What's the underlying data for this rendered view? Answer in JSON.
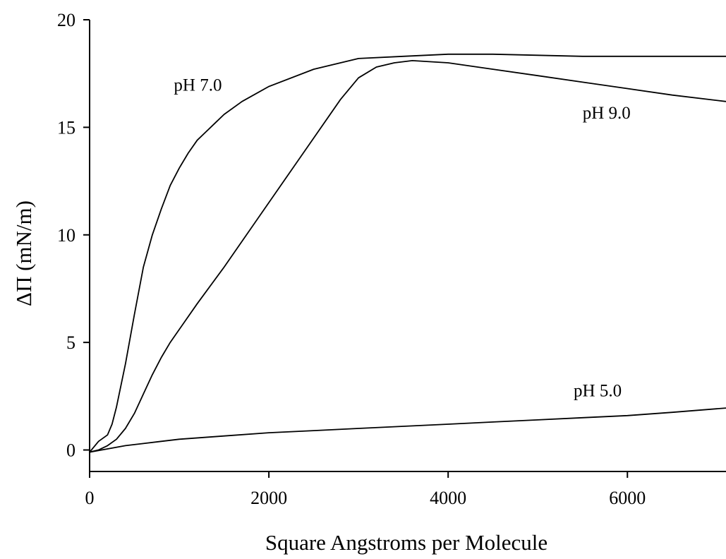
{
  "chart_data": {
    "type": "line",
    "title": "",
    "xlabel": "Square Angstroms per Molecule",
    "ylabel": "ΔΠ (mN/m)",
    "xlim": [
      0,
      7100
    ],
    "ylim": [
      -1,
      20
    ],
    "x_ticks": [
      0,
      2000,
      4000,
      6000
    ],
    "x_tick_labels": [
      "0",
      "2000",
      "4000",
      "6000"
    ],
    "y_ticks": [
      0,
      5,
      10,
      15,
      20
    ],
    "y_tick_labels": [
      "0",
      "5",
      "10",
      "15",
      "20"
    ],
    "grid": false,
    "legend": "none",
    "series": [
      {
        "name": "pH 7.0",
        "x": [
          0,
          100,
          200,
          250,
          300,
          400,
          500,
          600,
          700,
          800,
          900,
          1000,
          1100,
          1200,
          1300,
          1400,
          1500,
          1700,
          2000,
          2500,
          3000,
          3500,
          4000,
          4500,
          5000,
          5500,
          6000,
          6500,
          7100
        ],
        "y": [
          -0.1,
          0.4,
          0.7,
          1.2,
          2.0,
          4.0,
          6.3,
          8.5,
          10.0,
          11.2,
          12.3,
          13.1,
          13.8,
          14.4,
          14.8,
          15.2,
          15.6,
          16.2,
          16.9,
          17.7,
          18.2,
          18.3,
          18.4,
          18.4,
          18.35,
          18.3,
          18.3,
          18.3,
          18.3
        ],
        "label_x": 940,
        "label_y": 16.7
      },
      {
        "name": "pH 9.0",
        "x": [
          0,
          100,
          200,
          300,
          400,
          500,
          600,
          700,
          800,
          900,
          1000,
          1200,
          1500,
          2000,
          2500,
          2800,
          3000,
          3200,
          3400,
          3600,
          4000,
          4500,
          5000,
          5500,
          6000,
          6500,
          7100
        ],
        "y": [
          -0.1,
          0.0,
          0.2,
          0.5,
          1.0,
          1.7,
          2.6,
          3.5,
          4.3,
          5.0,
          5.6,
          6.8,
          8.5,
          11.5,
          14.5,
          16.3,
          17.3,
          17.8,
          18.0,
          18.1,
          18.0,
          17.7,
          17.4,
          17.1,
          16.8,
          16.5,
          16.2
        ],
        "label_x": 5500,
        "label_y": 15.4
      },
      {
        "name": "pH 5.0",
        "x": [
          0,
          200,
          400,
          600,
          800,
          1000,
          1500,
          2000,
          2500,
          3000,
          3500,
          4000,
          4500,
          5000,
          5500,
          6000,
          6500,
          7100
        ],
        "y": [
          -0.1,
          0.05,
          0.2,
          0.3,
          0.4,
          0.5,
          0.65,
          0.8,
          0.9,
          1.0,
          1.1,
          1.2,
          1.3,
          1.4,
          1.5,
          1.6,
          1.75,
          1.95
        ],
        "label_x": 5400,
        "label_y": 2.5
      }
    ]
  }
}
